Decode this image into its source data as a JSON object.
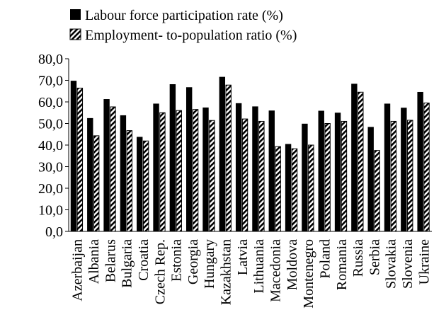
{
  "chart_data": {
    "type": "bar",
    "categories": [
      "Azerbaijan",
      "Albania",
      "Belarus",
      "Bulgaria",
      "Croatia",
      "Czech Rep.",
      "Estonia",
      "Georgia",
      "Hungary",
      "Kazakhstan",
      "Latvia",
      "Lithuania",
      "Macedonia",
      "Moldova",
      "Montenegro",
      "Poland",
      "Romania",
      "Russia",
      "Serbia",
      "Slovakia",
      "Slovenia",
      "Ukraine"
    ],
    "series": [
      {
        "name": "Labour force participation rate (%)",
        "values": [
          69.8,
          52.5,
          61.3,
          53.8,
          43.8,
          59.2,
          68.2,
          66.8,
          57.4,
          71.6,
          59.4,
          57.9,
          56.0,
          40.5,
          49.9,
          55.9,
          55.0,
          68.4,
          48.4,
          59.2,
          57.3,
          64.6
        ],
        "color": "#000000"
      },
      {
        "name": "Employment- to-population ratio (%)",
        "values": [
          66.4,
          44.3,
          57.7,
          46.7,
          41.9,
          55.0,
          56.0,
          56.5,
          51.4,
          67.8,
          52.1,
          51.0,
          39.3,
          38.3,
          40.0,
          50.0,
          51.0,
          64.5,
          37.5,
          51.0,
          51.5,
          59.5
        ],
        "color": "#000000"
      }
    ],
    "ylim": [
      0,
      80
    ],
    "yticks": [
      "0,0",
      "10,0",
      "20,0",
      "30,0",
      "40,0",
      "50,0",
      "60,0",
      "70,0",
      "80,0"
    ],
    "legend": "top"
  }
}
